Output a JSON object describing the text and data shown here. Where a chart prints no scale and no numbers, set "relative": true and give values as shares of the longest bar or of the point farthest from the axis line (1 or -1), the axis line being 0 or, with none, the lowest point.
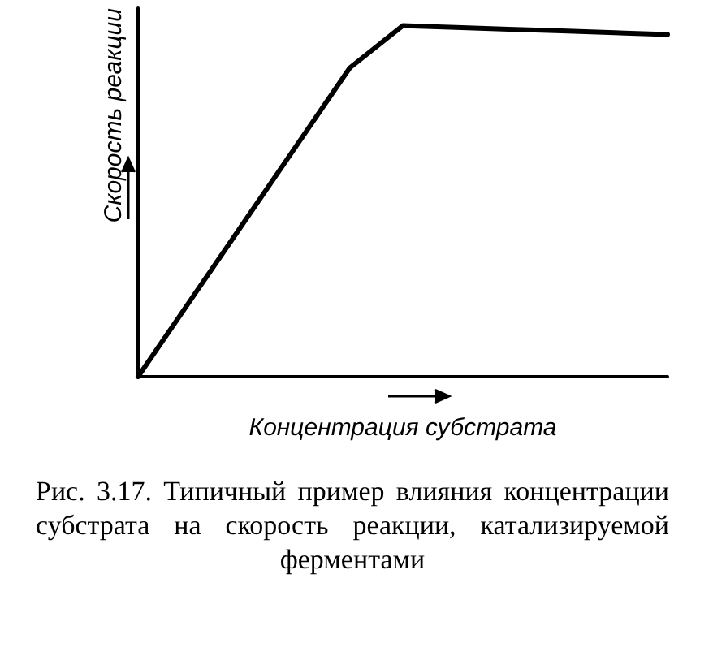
{
  "chart_data": {
    "type": "line",
    "relative": true,
    "xlabel": "Концентрация субстрата",
    "ylabel": "Скорость реакции",
    "categories": [
      null,
      null,
      null,
      null,
      null,
      null,
      null,
      null,
      null,
      null,
      null
    ],
    "values": [
      0,
      0.22,
      0.44,
      0.66,
      0.88,
      1.0,
      0.995,
      0.99,
      0.985,
      0.98,
      0.975
    ],
    "color": "#000000",
    "line_style": "solid",
    "annotations": [
      "Рис. 3.17. Типичный пример влияния концентрации субстрата на скорость реакции, катализируемой ферментами"
    ]
  }
}
